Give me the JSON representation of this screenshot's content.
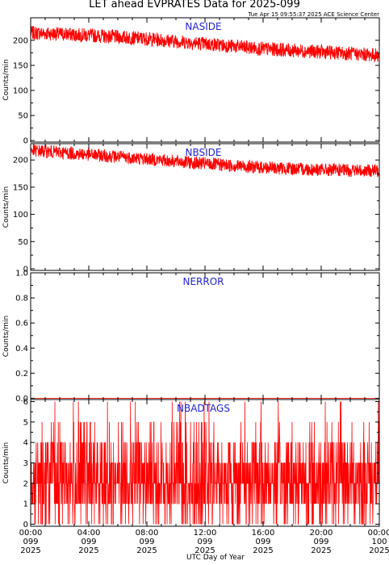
{
  "title": "LET ahead EVPRATES Data for 2025-099",
  "timestamp": "Tue Apr 15 09:55:37 2025 ACE Science Center",
  "xlabel": "UTC Day of Year",
  "x_ticks": [
    {
      "time": "00:00",
      "doy": "099",
      "year": "2025"
    },
    {
      "time": "04:00",
      "doy": "099",
      "year": "2025"
    },
    {
      "time": "08:00",
      "doy": "099",
      "year": "2025"
    },
    {
      "time": "12:00",
      "doy": "099",
      "year": "2025"
    },
    {
      "time": "16:00",
      "doy": "099",
      "year": "2025"
    },
    {
      "time": "20:00",
      "doy": "099",
      "year": "2025"
    },
    {
      "time": "00:00",
      "doy": "100",
      "year": "2025"
    }
  ],
  "colors": {
    "series": "#ff0000",
    "panel_label": "#1f1fd6"
  },
  "chart_data": [
    {
      "type": "line",
      "name": "NASIDE",
      "ylabel": "Counts/min",
      "ylim": [
        -3,
        245
      ],
      "yticks": [
        "0",
        "50",
        "100",
        "150",
        "200"
      ],
      "ytick_values": [
        0,
        50,
        100,
        150,
        200
      ],
      "xlim_hours": [
        0,
        24
      ],
      "trend": {
        "hours": [
          0,
          4,
          8,
          12,
          16,
          20,
          24
        ],
        "values": [
          215,
          210,
          203,
          193,
          183,
          177,
          170
        ]
      },
      "noise": 14
    },
    {
      "type": "line",
      "name": "NBSIDE",
      "ylabel": "Counts/min",
      "ylim": [
        -3,
        230
      ],
      "yticks": [
        "0",
        "50",
        "100",
        "150",
        "200"
      ],
      "ytick_values": [
        0,
        50,
        100,
        150,
        200
      ],
      "xlim_hours": [
        0,
        24
      ],
      "trend": {
        "hours": [
          0,
          4,
          8,
          12,
          16,
          20,
          24
        ],
        "values": [
          218,
          210,
          202,
          193,
          186,
          182,
          180
        ]
      },
      "noise": 12
    },
    {
      "type": "line",
      "name": "NERROR",
      "ylabel": "Counts/min",
      "ylim": [
        -0.01,
        1.0
      ],
      "yticks": [
        "0.0",
        "0.2",
        "0.4",
        "0.6",
        "0.8",
        "1.0"
      ],
      "ytick_values": [
        0,
        0.2,
        0.4,
        0.6,
        0.8,
        1.0
      ],
      "xlim_hours": [
        0,
        24
      ],
      "constant": 0
    },
    {
      "type": "line",
      "name": "NBADTAGS",
      "ylabel": "Counts/min",
      "ylim": [
        -0.1,
        6.1
      ],
      "yticks": [
        "0",
        "1",
        "2",
        "3",
        "4",
        "5",
        "6"
      ],
      "ytick_values": [
        0,
        1,
        2,
        3,
        4,
        5,
        6
      ],
      "xlim_hours": [
        0,
        24
      ],
      "discrete_levels": [
        0,
        1,
        2,
        3,
        4,
        5,
        6
      ],
      "level_weights": [
        0.08,
        0.22,
        0.3,
        0.22,
        0.12,
        0.04,
        0.02
      ]
    }
  ]
}
